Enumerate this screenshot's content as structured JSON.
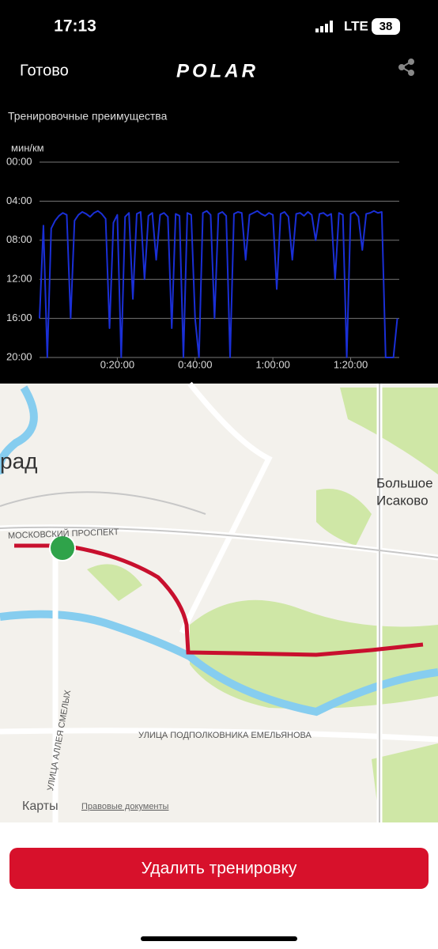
{
  "status_bar": {
    "time": "17:13",
    "network": "LTE",
    "battery": "38"
  },
  "nav": {
    "back": "Готово",
    "logo": "POLAR"
  },
  "section_title": "Тренировочные преимущества",
  "chart_data": {
    "type": "line",
    "y_label": "мин/км",
    "x": [
      0,
      1,
      2,
      3,
      4,
      5,
      6,
      7,
      8,
      9,
      10,
      11,
      12,
      13,
      14,
      15,
      16,
      17,
      18,
      19,
      20,
      21,
      22,
      23,
      24,
      25,
      26,
      27,
      28,
      29,
      30,
      31,
      32,
      33,
      34,
      35,
      36,
      37,
      38,
      39,
      40,
      41,
      42,
      43,
      44,
      45,
      46,
      47,
      48,
      49,
      50,
      51,
      52,
      53,
      54,
      55,
      56,
      57,
      58,
      59,
      60,
      61,
      62,
      63,
      64,
      65,
      66,
      67,
      68,
      69,
      70,
      71,
      72,
      73,
      74,
      75,
      76,
      77,
      78,
      79,
      80,
      81,
      82,
      83,
      84,
      85,
      86,
      87,
      88,
      89,
      90,
      91,
      92
    ],
    "series": [
      {
        "color": "#1a2fd6",
        "values": [
          16,
          6.5,
          20,
          6.8,
          6,
          5.5,
          5.2,
          5.4,
          16,
          6,
          5.4,
          5.1,
          5.3,
          5.6,
          5.2,
          5.0,
          5.3,
          5.8,
          17,
          6.2,
          5.4,
          20,
          5.6,
          5.2,
          14,
          5.3,
          5.1,
          12,
          5.5,
          5.2,
          10,
          5.4,
          5.2,
          5.6,
          17,
          5.3,
          5.5,
          20,
          5.2,
          5.4,
          16,
          20,
          5.2,
          5.0,
          5.4,
          16,
          5.3,
          5.1,
          5.5,
          20,
          5.3,
          5.1,
          5.2,
          10,
          5.4,
          5.2,
          5.0,
          5.3,
          5.5,
          5.2,
          5.4,
          13,
          5.3,
          5.1,
          5.6,
          10,
          5.3,
          5.2,
          5.5,
          5.1,
          5.4,
          8,
          5.3,
          5.2,
          5.5,
          5.3,
          12,
          5.2,
          5.4,
          20,
          5.3,
          5.1,
          5.6,
          9,
          5.3,
          5.2,
          5.0,
          5.2,
          5.1,
          20,
          20,
          20,
          16
        ]
      }
    ],
    "xlim": [
      0,
      92.5
    ],
    "xticks": [
      {
        "value": 20,
        "label": "0:20:00"
      },
      {
        "value": 40,
        "label": "0:40:00"
      },
      {
        "value": 60,
        "label": "1:00:00"
      },
      {
        "value": 80,
        "label": "1:20:00"
      }
    ],
    "ylim": [
      20,
      0
    ],
    "yticks": [
      {
        "value": 0,
        "label": "00:00"
      },
      {
        "value": 4,
        "label": "04:00"
      },
      {
        "value": 8,
        "label": "08:00"
      },
      {
        "value": 12,
        "label": "12:00"
      },
      {
        "value": 16,
        "label": "16:00"
      },
      {
        "value": 20,
        "label": "20:00"
      }
    ],
    "grid": true
  },
  "map": {
    "city": "рад",
    "village_1": "Большое",
    "village_2": "Исаково",
    "street_1": "МОСКОВСКИЙ ПРОСПЕКТ",
    "street_2": "УЛИЦА ПОДПОЛКОВНИКА ЕМЕЛЬЯНОВА",
    "street_3": "УЛИЦА АЛЛЕЯ СМЕЛЫХ",
    "attribution": "Карты",
    "legal": "Правовые документы"
  },
  "button": "Удалить тренировку"
}
